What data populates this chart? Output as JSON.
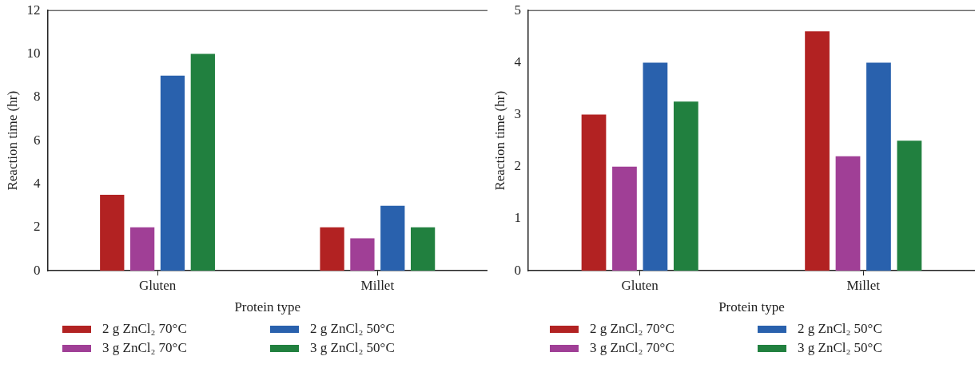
{
  "chart_data": [
    {
      "type": "bar",
      "xlabel": "Protein type",
      "ylabel": "Reaction time (hr)",
      "categories": [
        "Gluten",
        "Millet"
      ],
      "ylim": [
        0,
        12
      ],
      "yticks": [
        0,
        2,
        4,
        6,
        8,
        10,
        12
      ],
      "grid": false,
      "legend": "bottom",
      "series": [
        {
          "name": "2 g ZnCl₂ 70°C",
          "color": "#b22222",
          "values": [
            3.5,
            2
          ]
        },
        {
          "name": "3 g ZnCl₂ 70°C",
          "color": "#a03f96",
          "values": [
            2,
            1.5
          ]
        },
        {
          "name": "2 g ZnCl₂ 50°C",
          "color": "#2961ad",
          "values": [
            9,
            3
          ]
        },
        {
          "name": "3 g ZnCl₂ 50°C",
          "color": "#21803f",
          "values": [
            10,
            2
          ]
        }
      ]
    },
    {
      "type": "bar",
      "xlabel": "Protein type",
      "ylabel": "Reaction time (hr)",
      "categories": [
        "Gluten",
        "Millet"
      ],
      "ylim": [
        0,
        5
      ],
      "yticks": [
        0,
        1,
        2,
        3,
        4,
        5
      ],
      "grid": false,
      "legend": "bottom",
      "series": [
        {
          "name": "2 g ZnCl₂ 70°C",
          "color": "#b22222",
          "values": [
            3,
            4.6
          ]
        },
        {
          "name": "3 g ZnCl₂ 70°C",
          "color": "#a03f96",
          "values": [
            2,
            2.2
          ]
        },
        {
          "name": "2 g ZnCl₂ 50°C",
          "color": "#2961ad",
          "values": [
            4,
            4
          ]
        },
        {
          "name": "3 g ZnCl₂ 50°C",
          "color": "#21803f",
          "values": [
            3.25,
            2.5
          ]
        }
      ]
    }
  ]
}
